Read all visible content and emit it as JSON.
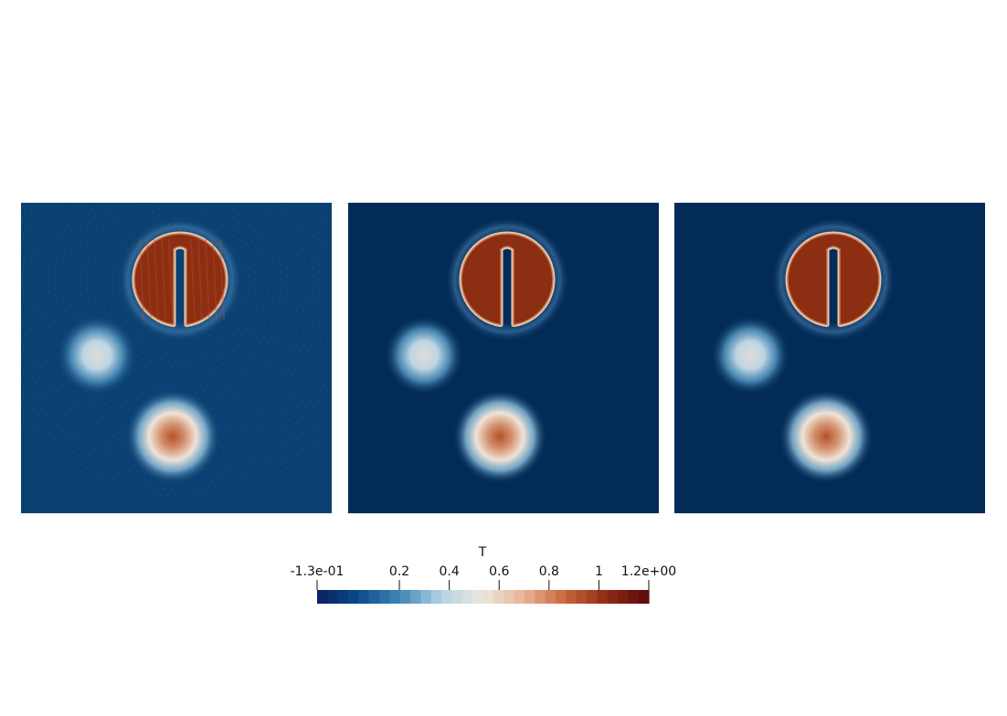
{
  "colorbar": {
    "title": "T",
    "min_label": "-1.3e-01",
    "max_label": "1.2e+00",
    "range": [
      -0.13,
      1.2
    ],
    "ticks": [
      {
        "value": 0.2,
        "label": "0.2"
      },
      {
        "value": 0.4,
        "label": "0.4"
      },
      {
        "value": 0.6,
        "label": "0.6"
      },
      {
        "value": 0.8,
        "label": "0.8"
      },
      {
        "value": 1.0,
        "label": "1"
      }
    ],
    "colormap": [
      "#0b1f5e",
      "#0b4a8a",
      "#3f86b5",
      "#b5d3e3",
      "#ece6de",
      "#e8b395",
      "#c8643b",
      "#8f2a14",
      "#5a0a0a"
    ],
    "bands": 32
  },
  "panels": [
    {
      "id": "left",
      "background": "#0a4172",
      "noise": true
    },
    {
      "id": "middle",
      "background": "#022b58",
      "noise": false
    },
    {
      "id": "right",
      "background": "#022b58",
      "noise": false
    }
  ],
  "colors": {
    "disk_fill": "#8c2e12",
    "disk_edge": "#eac9b2",
    "light_blob_center": "#e2ddd6",
    "warm_blob_center": "#b4522b"
  }
}
